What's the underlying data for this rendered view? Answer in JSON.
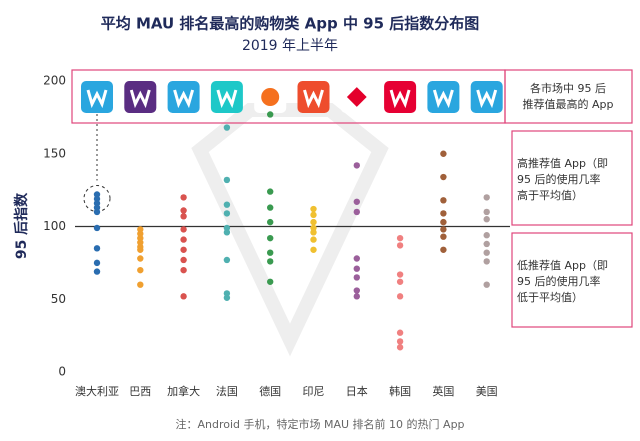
{
  "chart_data": {
    "type": "strip",
    "title": "平均 MAU 排名最高的购物类 App 中 95 后指数分布图",
    "subtitle": "2019 年上半年",
    "y_label": "95 后指数",
    "categories": [
      "澳大利亚",
      "巴西",
      "加拿大",
      "法国",
      "德国",
      "印尼",
      "日本",
      "韩国",
      "英国",
      "美国"
    ],
    "colors": [
      "#2a6db0",
      "#f0a030",
      "#d9534f",
      "#4fb0b0",
      "#3a9a50",
      "#f0c030",
      "#9b5f9b",
      "#f08080",
      "#a0603a",
      "#b0a0a0"
    ],
    "values": [
      [
        122,
        119,
        116,
        113,
        110,
        99,
        85,
        75,
        69
      ],
      [
        98,
        95,
        92,
        89,
        86,
        84,
        78,
        70,
        60
      ],
      [
        120,
        111,
        107,
        98,
        91,
        84,
        77,
        70,
        52
      ],
      [
        168,
        132,
        115,
        109,
        99,
        96,
        77,
        54,
        51
      ],
      [
        177,
        124,
        113,
        103,
        92,
        82,
        76,
        62
      ],
      [
        112,
        108,
        103,
        99,
        96,
        91,
        84
      ],
      [
        142,
        117,
        110,
        78,
        71,
        65,
        56,
        52
      ],
      [
        92,
        87,
        67,
        62,
        52,
        27,
        21,
        17
      ],
      [
        150,
        134,
        118,
        109,
        103,
        98,
        93,
        84
      ],
      [
        120,
        110,
        105,
        94,
        88,
        82,
        76,
        60
      ]
    ],
    "reference_line": 100,
    "ylim": [
      0,
      200
    ],
    "yticks": [
      0,
      50,
      100,
      150,
      200
    ],
    "annotations": {
      "top_app": [
        "各市场中 95 后",
        "推荐值最高的 App"
      ],
      "high": [
        "高推荐值 App（即",
        "95 后的使用几率",
        "高于平均值）"
      ],
      "low": [
        "低推荐值 App（即",
        "95 后的使用几率",
        "低于平均值）"
      ]
    },
    "footnote": "注：Android 手机，特定市场 MAU 排名前 10 的热门 App"
  }
}
